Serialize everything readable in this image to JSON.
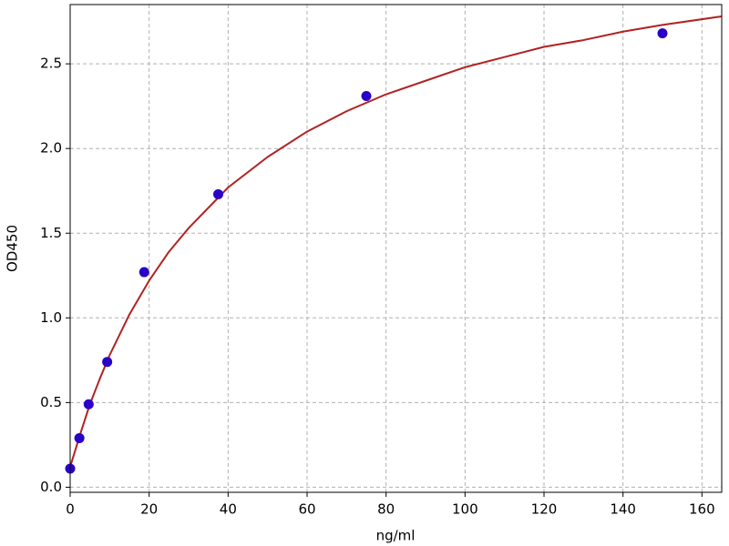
{
  "chart_data": {
    "type": "scatter",
    "x_label": "ng/ml",
    "y_label": "OD450",
    "xlim": [
      0,
      165
    ],
    "ylim": [
      -0.03,
      2.85
    ],
    "xticks": [
      0,
      20,
      40,
      60,
      80,
      100,
      120,
      140,
      160
    ],
    "yticks": [
      {
        "value": 0,
        "label": "0.0"
      },
      {
        "value": 0.5,
        "label": "0.5"
      },
      {
        "value": 1,
        "label": "1.0"
      },
      1.5,
      {
        "value": 2,
        "label": "2.0"
      },
      2.5
    ],
    "grid": true,
    "series": [
      {
        "type": "scatter",
        "color": "#2a00c8",
        "x": [
          0,
          2.34,
          4.69,
          9.38,
          18.75,
          37.5,
          75,
          150
        ],
        "values": [
          0.11,
          0.29,
          0.49,
          0.74,
          1.27,
          1.73,
          2.31,
          2.68
        ]
      },
      {
        "type": "line",
        "color": "#b22222",
        "x": [
          0,
          2.5,
          5,
          7.5,
          10,
          15,
          20,
          25,
          30,
          40,
          50,
          60,
          70,
          80,
          90,
          100,
          110,
          120,
          130,
          140,
          150,
          165
        ],
        "values": [
          0.12,
          0.31,
          0.49,
          0.64,
          0.78,
          1.02,
          1.22,
          1.39,
          1.53,
          1.77,
          1.95,
          2.1,
          2.22,
          2.32,
          2.4,
          2.48,
          2.54,
          2.6,
          2.64,
          2.69,
          2.73,
          2.78
        ]
      }
    ]
  }
}
